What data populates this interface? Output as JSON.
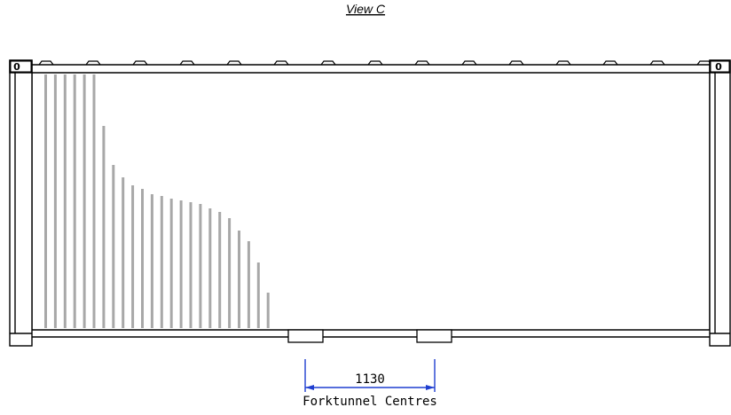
{
  "view_title": "View C",
  "corner_post_label_left": "0",
  "corner_post_label_right": "0",
  "dimension": {
    "value": "1130",
    "caption": "Forktunnel Centres"
  },
  "colors": {
    "line": "#000000",
    "dimension": "#1f3fd0",
    "corrugation": "#a8a8a8"
  }
}
